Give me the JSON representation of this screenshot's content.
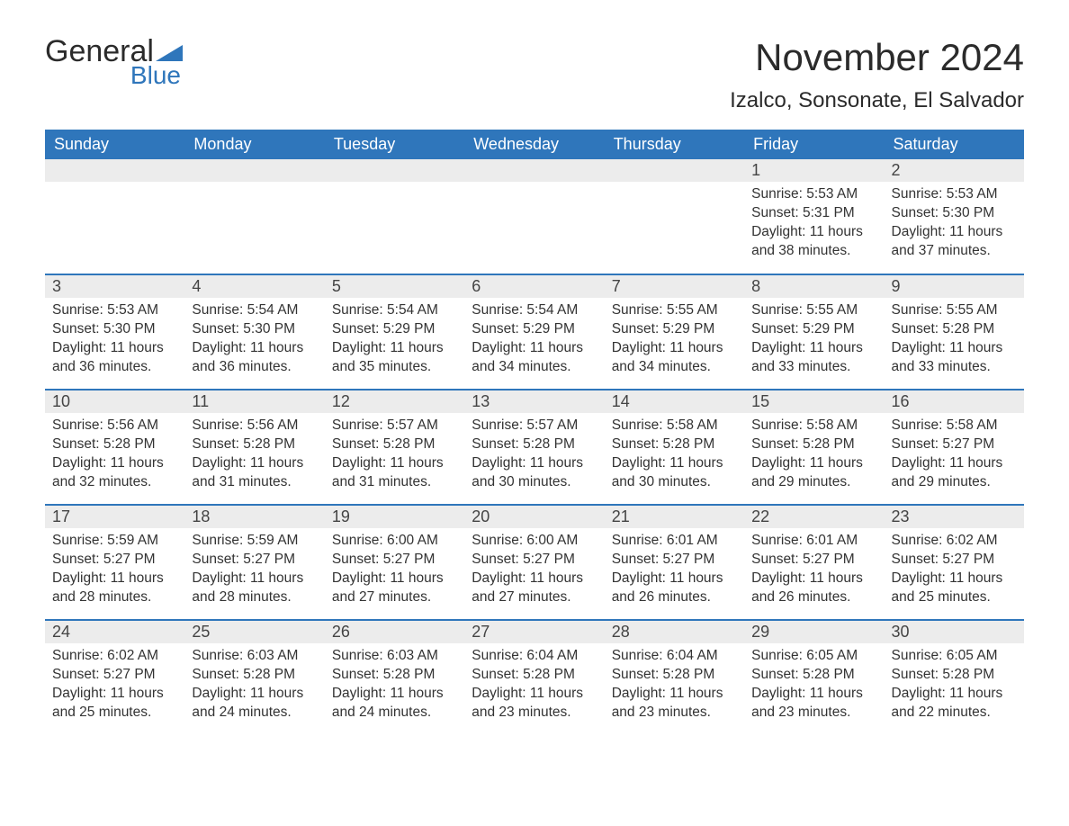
{
  "logo": {
    "word1": "General",
    "word2": "Blue"
  },
  "title": "November 2024",
  "location": "Izalco, Sonsonate, El Salvador",
  "colors": {
    "header_bg": "#2f76bb",
    "header_text": "#ffffff",
    "daynum_bg": "#ececec",
    "row_separator": "#2f76bb",
    "text": "#333333",
    "logo_blue": "#2f76bb"
  },
  "weekdays": [
    "Sunday",
    "Monday",
    "Tuesday",
    "Wednesday",
    "Thursday",
    "Friday",
    "Saturday"
  ],
  "weeks": [
    [
      null,
      null,
      null,
      null,
      null,
      {
        "d": "1",
        "sr": "5:53 AM",
        "ss": "5:31 PM",
        "dl": "11 hours and 38 minutes."
      },
      {
        "d": "2",
        "sr": "5:53 AM",
        "ss": "5:30 PM",
        "dl": "11 hours and 37 minutes."
      }
    ],
    [
      {
        "d": "3",
        "sr": "5:53 AM",
        "ss": "5:30 PM",
        "dl": "11 hours and 36 minutes."
      },
      {
        "d": "4",
        "sr": "5:54 AM",
        "ss": "5:30 PM",
        "dl": "11 hours and 36 minutes."
      },
      {
        "d": "5",
        "sr": "5:54 AM",
        "ss": "5:29 PM",
        "dl": "11 hours and 35 minutes."
      },
      {
        "d": "6",
        "sr": "5:54 AM",
        "ss": "5:29 PM",
        "dl": "11 hours and 34 minutes."
      },
      {
        "d": "7",
        "sr": "5:55 AM",
        "ss": "5:29 PM",
        "dl": "11 hours and 34 minutes."
      },
      {
        "d": "8",
        "sr": "5:55 AM",
        "ss": "5:29 PM",
        "dl": "11 hours and 33 minutes."
      },
      {
        "d": "9",
        "sr": "5:55 AM",
        "ss": "5:28 PM",
        "dl": "11 hours and 33 minutes."
      }
    ],
    [
      {
        "d": "10",
        "sr": "5:56 AM",
        "ss": "5:28 PM",
        "dl": "11 hours and 32 minutes."
      },
      {
        "d": "11",
        "sr": "5:56 AM",
        "ss": "5:28 PM",
        "dl": "11 hours and 31 minutes."
      },
      {
        "d": "12",
        "sr": "5:57 AM",
        "ss": "5:28 PM",
        "dl": "11 hours and 31 minutes."
      },
      {
        "d": "13",
        "sr": "5:57 AM",
        "ss": "5:28 PM",
        "dl": "11 hours and 30 minutes."
      },
      {
        "d": "14",
        "sr": "5:58 AM",
        "ss": "5:28 PM",
        "dl": "11 hours and 30 minutes."
      },
      {
        "d": "15",
        "sr": "5:58 AM",
        "ss": "5:28 PM",
        "dl": "11 hours and 29 minutes."
      },
      {
        "d": "16",
        "sr": "5:58 AM",
        "ss": "5:27 PM",
        "dl": "11 hours and 29 minutes."
      }
    ],
    [
      {
        "d": "17",
        "sr": "5:59 AM",
        "ss": "5:27 PM",
        "dl": "11 hours and 28 minutes."
      },
      {
        "d": "18",
        "sr": "5:59 AM",
        "ss": "5:27 PM",
        "dl": "11 hours and 28 minutes."
      },
      {
        "d": "19",
        "sr": "6:00 AM",
        "ss": "5:27 PM",
        "dl": "11 hours and 27 minutes."
      },
      {
        "d": "20",
        "sr": "6:00 AM",
        "ss": "5:27 PM",
        "dl": "11 hours and 27 minutes."
      },
      {
        "d": "21",
        "sr": "6:01 AM",
        "ss": "5:27 PM",
        "dl": "11 hours and 26 minutes."
      },
      {
        "d": "22",
        "sr": "6:01 AM",
        "ss": "5:27 PM",
        "dl": "11 hours and 26 minutes."
      },
      {
        "d": "23",
        "sr": "6:02 AM",
        "ss": "5:27 PM",
        "dl": "11 hours and 25 minutes."
      }
    ],
    [
      {
        "d": "24",
        "sr": "6:02 AM",
        "ss": "5:27 PM",
        "dl": "11 hours and 25 minutes."
      },
      {
        "d": "25",
        "sr": "6:03 AM",
        "ss": "5:28 PM",
        "dl": "11 hours and 24 minutes."
      },
      {
        "d": "26",
        "sr": "6:03 AM",
        "ss": "5:28 PM",
        "dl": "11 hours and 24 minutes."
      },
      {
        "d": "27",
        "sr": "6:04 AM",
        "ss": "5:28 PM",
        "dl": "11 hours and 23 minutes."
      },
      {
        "d": "28",
        "sr": "6:04 AM",
        "ss": "5:28 PM",
        "dl": "11 hours and 23 minutes."
      },
      {
        "d": "29",
        "sr": "6:05 AM",
        "ss": "5:28 PM",
        "dl": "11 hours and 23 minutes."
      },
      {
        "d": "30",
        "sr": "6:05 AM",
        "ss": "5:28 PM",
        "dl": "11 hours and 22 minutes."
      }
    ]
  ],
  "labels": {
    "sunrise": "Sunrise: ",
    "sunset": "Sunset: ",
    "daylight": "Daylight: "
  }
}
